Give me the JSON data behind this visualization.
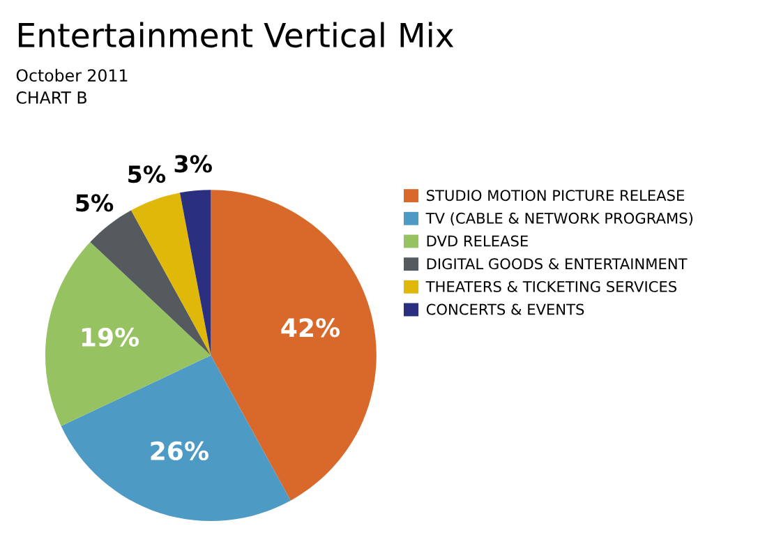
{
  "chart_data": {
    "type": "pie",
    "title": "Entertainment Vertical Mix",
    "subtitle": "October 2011\nCHART B",
    "categories": [
      "STUDIO MOTION PICTURE RELEASE",
      "TV (CABLE & NETWORK PROGRAMS)",
      "DVD RELEASE",
      "DIGITAL GOODS & ENTERTAINMENT",
      "THEATERS & TICKETING SERVICES",
      "CONCERTS & EVENTS"
    ],
    "values": [
      42,
      26,
      19,
      5,
      5,
      3
    ],
    "colors": [
      "#d9692a",
      "#4d9ac4",
      "#96c262",
      "#555a5e",
      "#e0b80a",
      "#2a2f80"
    ],
    "value_labels": [
      "42%",
      "26%",
      "19%",
      "5%",
      "5%",
      "3%"
    ],
    "legend": "right"
  }
}
